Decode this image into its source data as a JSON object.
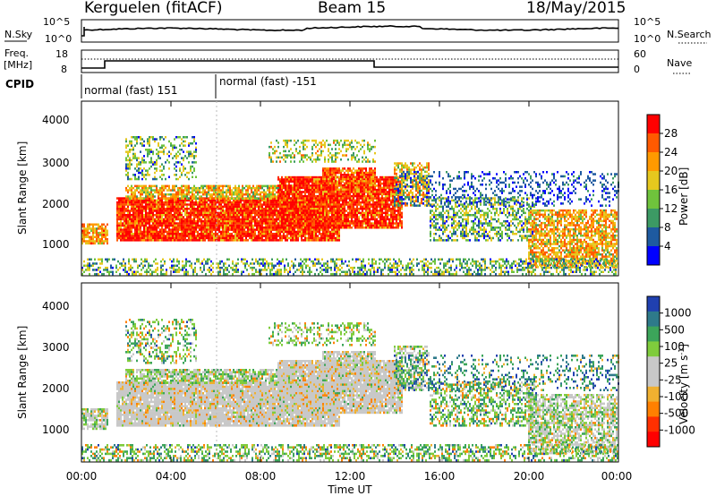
{
  "header": {
    "station": "Kerguelen (fitACF)",
    "beam": "Beam 15",
    "date": "18/May/2015"
  },
  "top_panels": {
    "nsky_label": "N.Sky",
    "nsky_ticks": [
      "10^5",
      "10^0"
    ],
    "nsearch_label": "N.Search",
    "nsearch_ticks": [
      "10^5",
      "10^0"
    ],
    "freq_label": "Freq.",
    "freq_unit": "[MHz]",
    "freq_ticks": [
      "18",
      "8"
    ],
    "nave_label": "Nave",
    "nave_ticks": [
      "60",
      "0"
    ],
    "cpid_label": "CPID",
    "cpid_segments": [
      {
        "label": "normal (fast) 151",
        "start_hour": 0
      },
      {
        "label": "normal (fast) -151",
        "start_hour": 6
      }
    ]
  },
  "chart_data": [
    {
      "type": "heatmap",
      "name": "power",
      "ylabel": "Slant Range [km]",
      "ylim": [
        180,
        4600
      ],
      "yticks": [
        "4000",
        "3000",
        "2000",
        "1000"
      ],
      "xlim": [
        0,
        24
      ],
      "colorbar_label": "Power [dB]",
      "colorbar_ticks": [
        "28",
        "24",
        "20",
        "16",
        "12",
        "8",
        "4"
      ],
      "colorbar_colors": [
        "#ff0000",
        "#ff5a00",
        "#ff9a00",
        "#e6c81e",
        "#6fc33c",
        "#3c9a64",
        "#1e5aa0",
        "#0000ff"
      ]
    },
    {
      "type": "heatmap",
      "name": "velocity",
      "ylabel": "Slant Range [km]",
      "ylim": [
        180,
        4600
      ],
      "yticks": [
        "4000",
        "3000",
        "2000",
        "1000"
      ],
      "xlim": [
        0,
        24
      ],
      "xlabel": "Time UT",
      "xticks": [
        "00:00",
        "04:00",
        "08:00",
        "12:00",
        "16:00",
        "20:00",
        "00:00"
      ],
      "colorbar_label": "Velocity [m s",
      "colorbar_label_sup": "-1",
      "colorbar_label_end": "]",
      "colorbar_ticks": [
        "1000",
        "500",
        "100",
        "25",
        "-25",
        "-100",
        "-500",
        "-1000"
      ],
      "colorbar_colors": [
        "#2040b0",
        "#2e7a8a",
        "#3ca55a",
        "#7fcc3c",
        "#c8c8c8",
        "#c8c8c8",
        "#f0b030",
        "#ff8000",
        "#ff3000",
        "#ff0000"
      ]
    }
  ]
}
